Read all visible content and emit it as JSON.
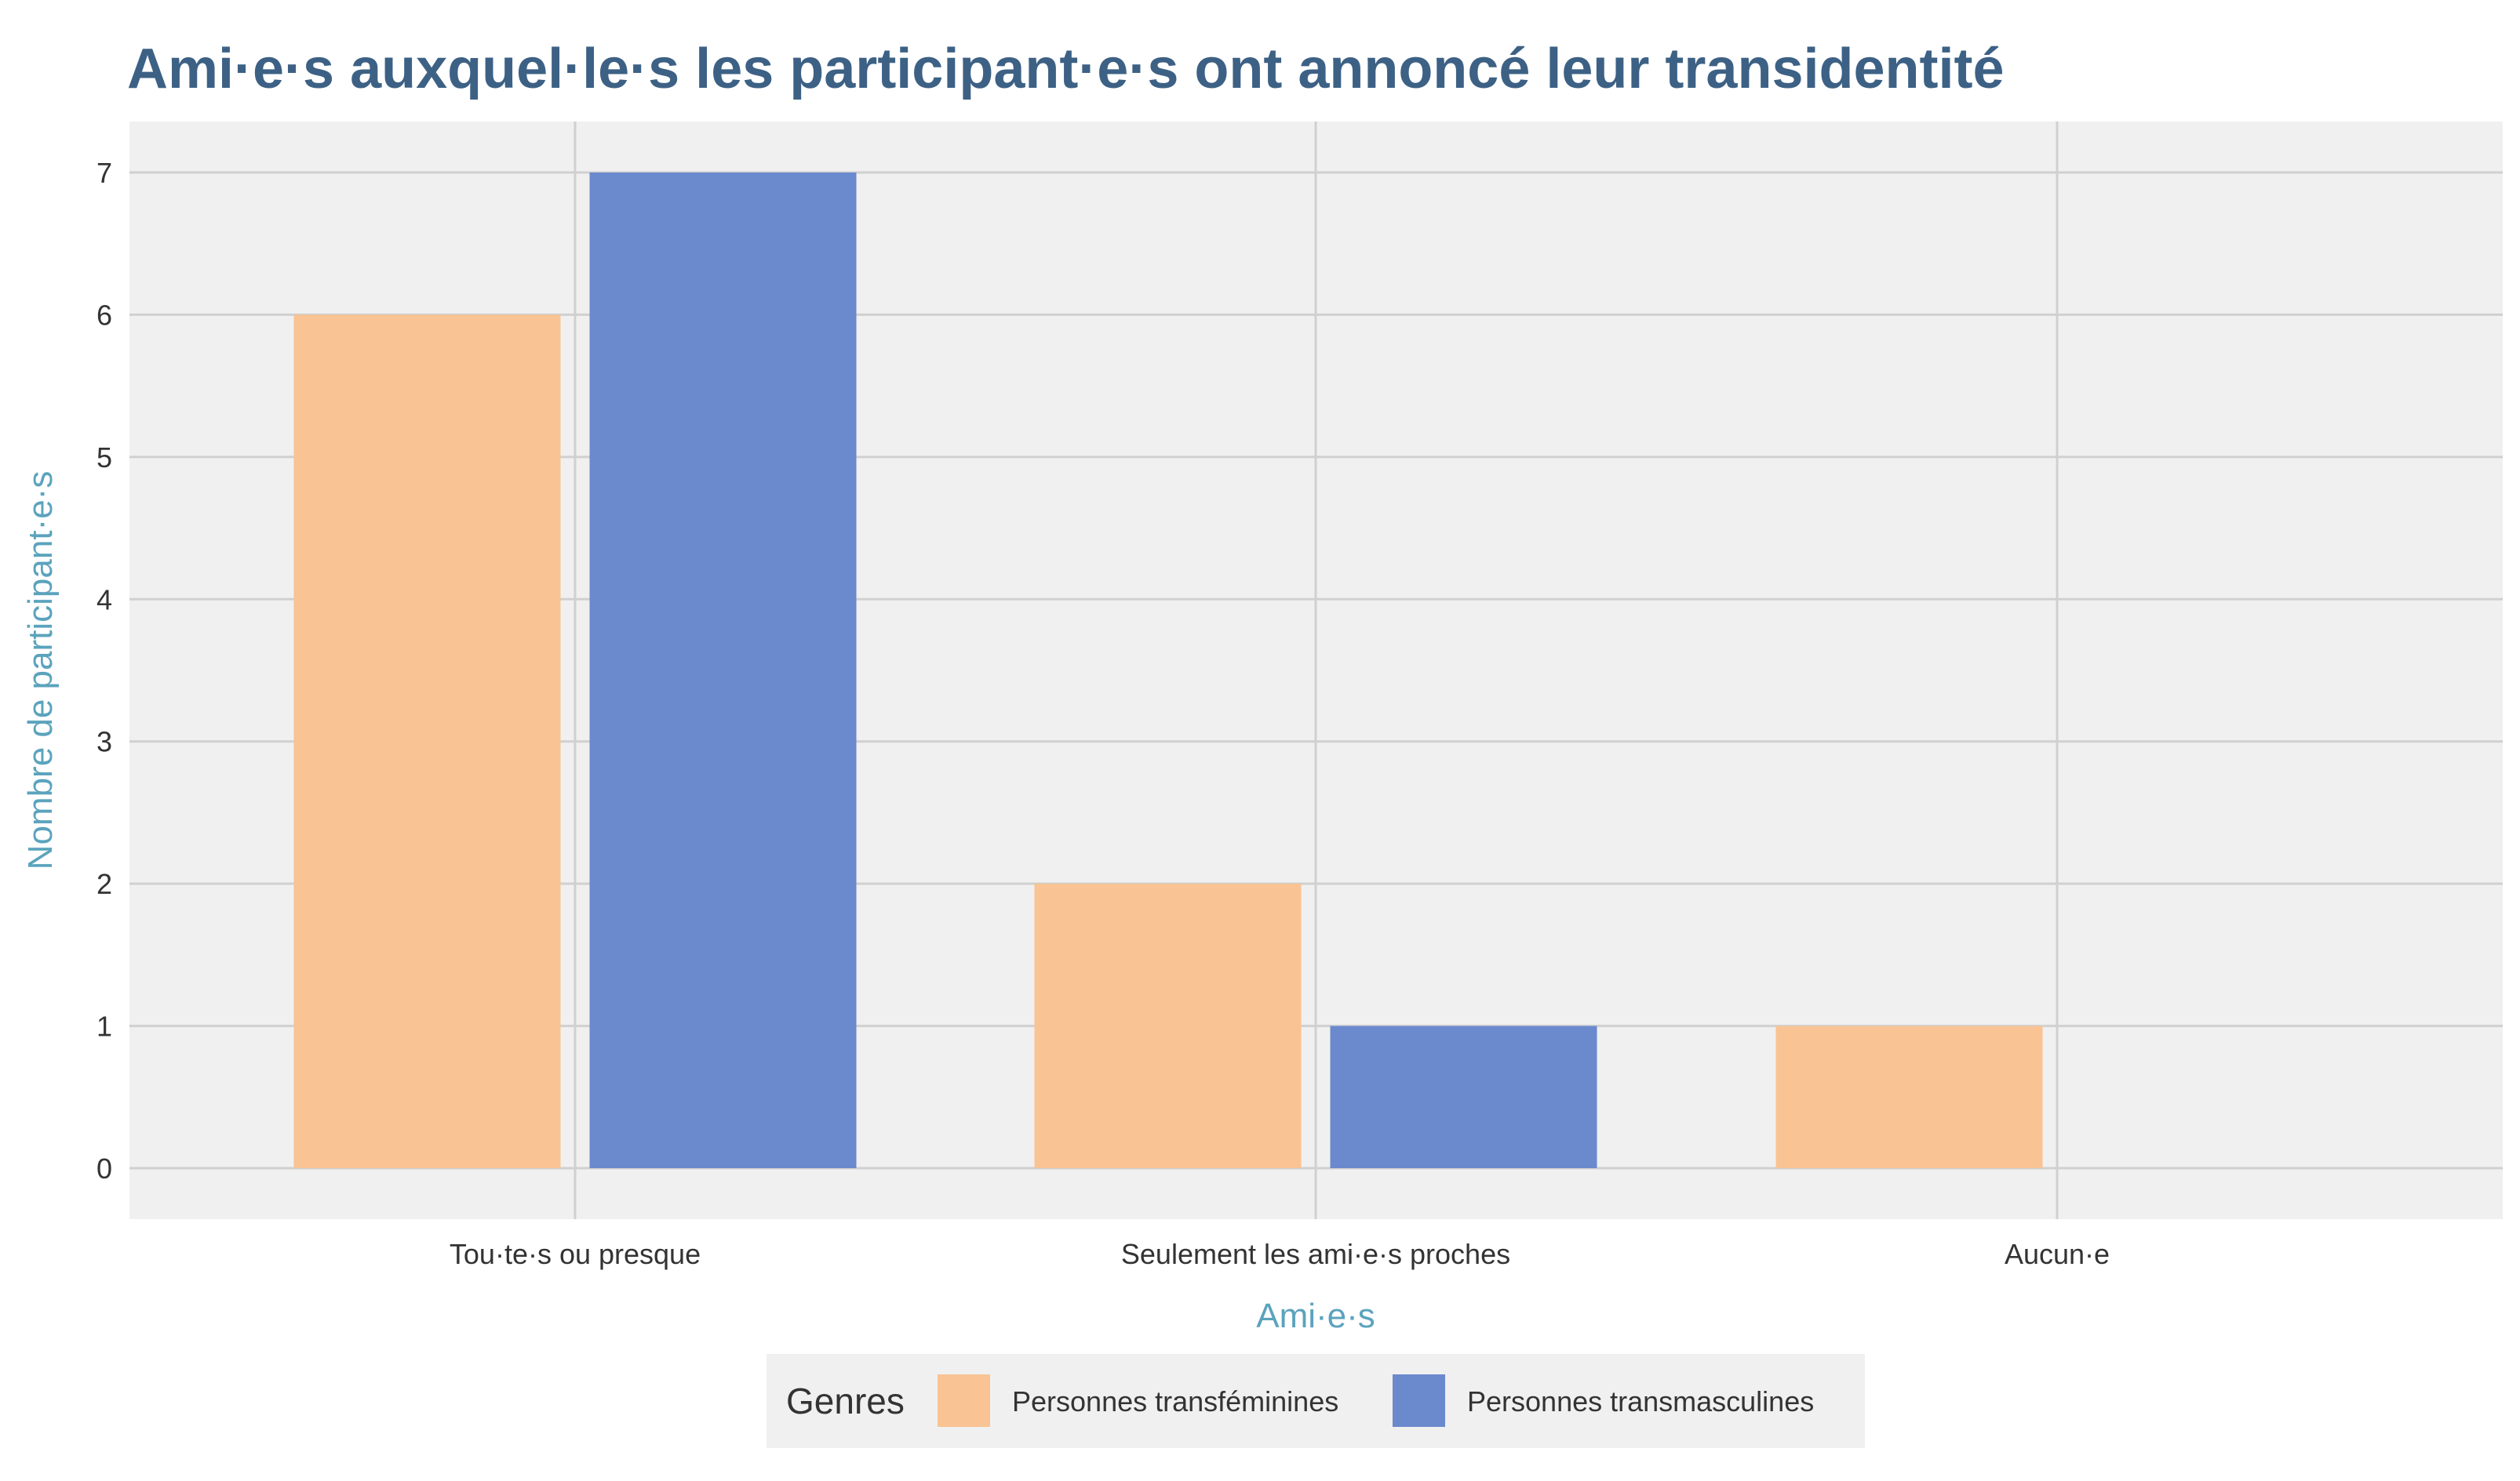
{
  "chart_data": {
    "type": "bar",
    "title": "Ami·e·s auxquel·le·s les participant·e·s ont annoncé leur transidentité",
    "xlabel": "Ami·e·s",
    "ylabel": "Nombre de participant·e·s",
    "categories": [
      "Tou·te·s ou presque",
      "Seulement les ami·e·s proches",
      "Aucun·e"
    ],
    "series": [
      {
        "name": "Personnes transféminines",
        "color": "#f9c393",
        "values": [
          6,
          2,
          1
        ]
      },
      {
        "name": "Personnes transmasculines",
        "color": "#6b89cd",
        "values": [
          7,
          1,
          0
        ]
      }
    ],
    "ylim": [
      0,
      7
    ],
    "yticks": [
      "0",
      "1",
      "2",
      "3",
      "4",
      "5",
      "6",
      "7"
    ],
    "grid": true,
    "legend": {
      "title": "Genres",
      "position": "bottom"
    },
    "colors": {
      "panel": "#f0f0f0",
      "grid": "#d0d0d0",
      "title": "#3d6185",
      "axis_label": "#5ba3bd"
    }
  }
}
